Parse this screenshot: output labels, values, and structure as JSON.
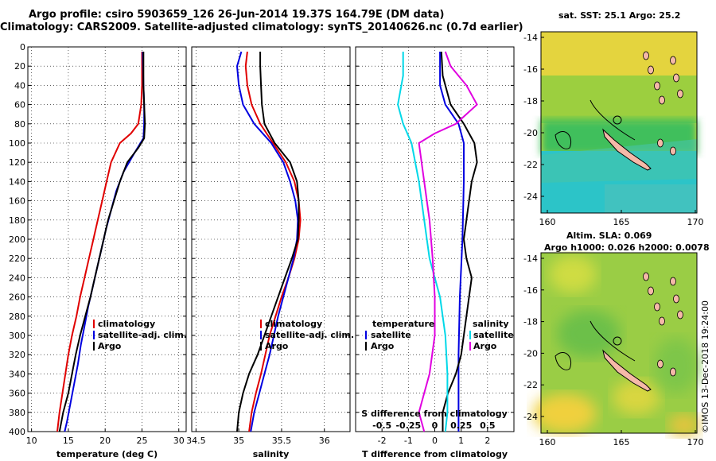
{
  "header": {
    "title_line1": "Argo profile: csiro 5903659_126 26-Jun-2014 19.37S 164.79E (DM data)",
    "title_line2": "Climatology: CARS2009. Satellite-adjusted climatology: synTS_20140626.nc (0.7d earlier)"
  },
  "maps": {
    "sst_title": "sat. SST: 25.1 Argo: 25.2",
    "sla_title_line1": "Altim. SLA: 0.069",
    "sla_title_line2": "Argo h1000: 0.026 h2000: 0.0078",
    "lat_ticks": [
      "-14",
      "-16",
      "-18",
      "-20",
      "-22",
      "-24"
    ],
    "lon_ticks": [
      "160",
      "165",
      "170"
    ]
  },
  "stamp": "©IMOS 13-Dec-2018 19:24:00",
  "colors": {
    "climatology": "#e00000",
    "satellite": "#0000e0",
    "argo": "#000000",
    "salinity_diff_sat": "#00d8e8",
    "salinity_diff_argo": "#e000e0"
  },
  "chart_data": [
    {
      "type": "line",
      "name": "temperature",
      "xlabel": "temperature (deg C)",
      "xlim": [
        9.5,
        31
      ],
      "xticks": [
        "10",
        "15",
        "20",
        "25",
        "30"
      ],
      "ylim": [
        0,
        400
      ],
      "yticks": [
        "0",
        "20",
        "40",
        "60",
        "80",
        "100",
        "120",
        "140",
        "160",
        "180",
        "200",
        "220",
        "240",
        "260",
        "280",
        "300",
        "320",
        "340",
        "360",
        "380",
        "400"
      ],
      "legend": [
        "climatology",
        "satellite-adj. clim.",
        "Argo"
      ],
      "series": [
        {
          "name": "climatology",
          "color": "#e00000",
          "points": [
            [
              25,
              5
            ],
            [
              25,
              40
            ],
            [
              24.9,
              60
            ],
            [
              24.5,
              80
            ],
            [
              23.5,
              90
            ],
            [
              22,
              100
            ],
            [
              20.8,
              120
            ],
            [
              20.2,
              140
            ],
            [
              19.6,
              160
            ],
            [
              19,
              180
            ],
            [
              18.4,
              200
            ],
            [
              17.8,
              220
            ],
            [
              17.2,
              240
            ],
            [
              16.6,
              260
            ],
            [
              16.1,
              280
            ],
            [
              15.5,
              300
            ],
            [
              15,
              320
            ],
            [
              14.6,
              340
            ],
            [
              14.2,
              360
            ],
            [
              13.8,
              380
            ],
            [
              13.5,
              400
            ]
          ]
        },
        {
          "name": "satellite-adj. clim.",
          "color": "#0000e0",
          "points": [
            [
              25.1,
              5
            ],
            [
              25.2,
              40
            ],
            [
              25.3,
              60
            ],
            [
              25.3,
              80
            ],
            [
              25.2,
              95
            ],
            [
              24,
              110
            ],
            [
              22.5,
              130
            ],
            [
              21.5,
              150
            ],
            [
              20.8,
              170
            ],
            [
              20.1,
              190
            ],
            [
              19.5,
              210
            ],
            [
              18.9,
              230
            ],
            [
              18.3,
              250
            ],
            [
              17.7,
              270
            ],
            [
              17.2,
              290
            ],
            [
              16.7,
              310
            ],
            [
              16.3,
              330
            ],
            [
              15.8,
              350
            ],
            [
              15.3,
              370
            ],
            [
              14.8,
              390
            ],
            [
              14.5,
              400
            ]
          ]
        },
        {
          "name": "Argo",
          "color": "#000000",
          "points": [
            [
              25.2,
              5
            ],
            [
              25.2,
              40
            ],
            [
              25.3,
              60
            ],
            [
              25.4,
              80
            ],
            [
              25.3,
              95
            ],
            [
              24.5,
              105
            ],
            [
              23,
              120
            ],
            [
              22,
              140
            ],
            [
              21.2,
              160
            ],
            [
              20.4,
              180
            ],
            [
              19.8,
              200
            ],
            [
              19.2,
              220
            ],
            [
              18.6,
              240
            ],
            [
              18,
              260
            ],
            [
              17.3,
              280
            ],
            [
              16.6,
              300
            ],
            [
              16,
              320
            ],
            [
              15.5,
              340
            ],
            [
              15,
              360
            ],
            [
              14.3,
              380
            ],
            [
              13.8,
              400
            ]
          ]
        }
      ]
    },
    {
      "type": "line",
      "name": "salinity",
      "xlabel": "salinity",
      "xlim": [
        34.45,
        36.3
      ],
      "xticks": [
        "34.5",
        "35",
        "35.5",
        "36"
      ],
      "ylim": [
        0,
        400
      ],
      "legend": [
        "climatology",
        "satellite-adj. clim.",
        "Argo"
      ],
      "series": [
        {
          "name": "climatology",
          "color": "#e00000",
          "points": [
            [
              35.1,
              5
            ],
            [
              35.08,
              20
            ],
            [
              35.1,
              40
            ],
            [
              35.15,
              60
            ],
            [
              35.25,
              80
            ],
            [
              35.4,
              100
            ],
            [
              35.55,
              120
            ],
            [
              35.65,
              140
            ],
            [
              35.7,
              160
            ],
            [
              35.72,
              180
            ],
            [
              35.7,
              200
            ],
            [
              35.65,
              220
            ],
            [
              35.58,
              240
            ],
            [
              35.5,
              260
            ],
            [
              35.43,
              280
            ],
            [
              35.36,
              300
            ],
            [
              35.31,
              320
            ],
            [
              35.26,
              340
            ],
            [
              35.2,
              360
            ],
            [
              35.15,
              380
            ],
            [
              35.12,
              400
            ]
          ]
        },
        {
          "name": "satellite-adj. clim.",
          "color": "#0000e0",
          "points": [
            [
              35.03,
              5
            ],
            [
              34.98,
              20
            ],
            [
              35,
              40
            ],
            [
              35.05,
              60
            ],
            [
              35.18,
              80
            ],
            [
              35.38,
              100
            ],
            [
              35.52,
              120
            ],
            [
              35.6,
              140
            ],
            [
              35.66,
              160
            ],
            [
              35.69,
              180
            ],
            [
              35.68,
              200
            ],
            [
              35.64,
              220
            ],
            [
              35.58,
              240
            ],
            [
              35.52,
              260
            ],
            [
              35.46,
              280
            ],
            [
              35.41,
              300
            ],
            [
              35.36,
              320
            ],
            [
              35.3,
              340
            ],
            [
              35.24,
              360
            ],
            [
              35.18,
              380
            ],
            [
              35.14,
              400
            ]
          ]
        },
        {
          "name": "Argo",
          "color": "#000000",
          "points": [
            [
              35.25,
              5
            ],
            [
              35.25,
              20
            ],
            [
              35.26,
              40
            ],
            [
              35.27,
              60
            ],
            [
              35.3,
              80
            ],
            [
              35.42,
              100
            ],
            [
              35.6,
              120
            ],
            [
              35.68,
              140
            ],
            [
              35.7,
              160
            ],
            [
              35.7,
              180
            ],
            [
              35.69,
              200
            ],
            [
              35.62,
              220
            ],
            [
              35.54,
              240
            ],
            [
              35.46,
              260
            ],
            [
              35.38,
              280
            ],
            [
              35.3,
              300
            ],
            [
              35.22,
              320
            ],
            [
              35.12,
              340
            ],
            [
              35.05,
              360
            ],
            [
              35,
              380
            ],
            [
              34.98,
              400
            ]
          ]
        }
      ]
    },
    {
      "type": "line",
      "name": "differences",
      "xlabel": "T difference from climatology",
      "xlim": [
        -3,
        3
      ],
      "xticks": [
        "-2",
        "-1",
        "0",
        "1",
        "2"
      ],
      "top_axis_label": "S difference from climatology",
      "top_ticks": [
        "-0.5",
        "-0.25",
        "0",
        "0.25",
        "0.5"
      ],
      "ylim": [
        0,
        400
      ],
      "legend_left_title": "temperature",
      "legend_right_title": "salinity",
      "legend_labels": [
        "satellite",
        "Argo"
      ],
      "series": [
        {
          "name": "T satellite",
          "color": "#0000e0",
          "points": [
            [
              0.2,
              5
            ],
            [
              0.2,
              40
            ],
            [
              0.4,
              60
            ],
            [
              0.9,
              80
            ],
            [
              1.1,
              100
            ],
            [
              1.1,
              140
            ],
            [
              1.05,
              200
            ],
            [
              0.95,
              260
            ],
            [
              0.9,
              320
            ],
            [
              0.9,
              360
            ],
            [
              0.9,
              400
            ]
          ]
        },
        {
          "name": "T Argo",
          "color": "#000000",
          "points": [
            [
              0.25,
              5
            ],
            [
              0.3,
              30
            ],
            [
              0.6,
              60
            ],
            [
              1.1,
              80
            ],
            [
              1.5,
              100
            ],
            [
              1.6,
              120
            ],
            [
              1.4,
              140
            ],
            [
              1.3,
              160
            ],
            [
              1.2,
              180
            ],
            [
              1.1,
              200
            ],
            [
              1.2,
              220
            ],
            [
              1.4,
              240
            ],
            [
              1.3,
              260
            ],
            [
              1.2,
              280
            ],
            [
              1.1,
              300
            ],
            [
              1.0,
              320
            ],
            [
              0.8,
              340
            ],
            [
              0.5,
              360
            ],
            [
              0.3,
              380
            ],
            [
              0.3,
              400
            ]
          ]
        },
        {
          "name": "S satellite",
          "color": "#00d8e8",
          "points": [
            [
              -0.3,
              5
            ],
            [
              -0.3,
              30
            ],
            [
              -0.35,
              60
            ],
            [
              -0.3,
              80
            ],
            [
              -0.22,
              100
            ],
            [
              -0.15,
              140
            ],
            [
              -0.1,
              180
            ],
            [
              -0.05,
              220
            ],
            [
              0.05,
              260
            ],
            [
              0.1,
              300
            ],
            [
              0.12,
              340
            ],
            [
              0.12,
              380
            ],
            [
              0.1,
              400
            ]
          ]
        },
        {
          "name": "S Argo",
          "color": "#e000e0",
          "points": [
            [
              0.1,
              5
            ],
            [
              0.15,
              20
            ],
            [
              0.3,
              40
            ],
            [
              0.4,
              60
            ],
            [
              0.2,
              80
            ],
            [
              0.0,
              90
            ],
            [
              -0.15,
              100
            ],
            [
              -0.1,
              140
            ],
            [
              -0.05,
              180
            ],
            [
              -0.02,
              220
            ],
            [
              0.0,
              260
            ],
            [
              0.0,
              300
            ],
            [
              -0.05,
              340
            ],
            [
              -0.1,
              360
            ],
            [
              -0.15,
              380
            ],
            [
              -0.1,
              400
            ]
          ]
        }
      ]
    }
  ]
}
